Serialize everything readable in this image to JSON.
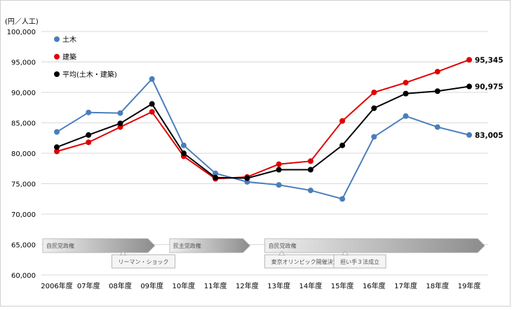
{
  "chart_data": {
    "type": "line",
    "unit_label": "(円／人工)",
    "categories": [
      "2006年度",
      "07年度",
      "08年度",
      "09年度",
      "10年度",
      "11年度",
      "12年度",
      "13年度",
      "14年度",
      "15年度",
      "16年度",
      "17年度",
      "18年度",
      "19年度"
    ],
    "ylim": [
      60000,
      100000
    ],
    "yticks": [
      "60,000",
      "65,000",
      "70,000",
      "75,000",
      "80,000",
      "85,000",
      "90,000",
      "95,000",
      "100,000"
    ],
    "grid": true,
    "legend_position": "top-left",
    "series": [
      {
        "name": "土木",
        "color": "#4a7ebb",
        "values": [
          83500,
          86700,
          86600,
          92200,
          81300,
          76700,
          75300,
          74800,
          73900,
          72500,
          82700,
          86100,
          84300,
          83005
        ],
        "end_label": "83,005"
      },
      {
        "name": "建築",
        "color": "#e00000",
        "values": [
          80300,
          81800,
          84300,
          86800,
          79500,
          75800,
          76100,
          78200,
          78700,
          85300,
          90000,
          91600,
          93400,
          95345
        ],
        "end_label": "95,345"
      },
      {
        "name": "平均(土木・建築)",
        "color": "#000000",
        "values": [
          81000,
          83000,
          84900,
          88100,
          80000,
          76000,
          75900,
          77300,
          77300,
          81300,
          87400,
          89800,
          90200,
          90975
        ],
        "end_label": "90,975"
      }
    ],
    "annotations": {
      "eras": [
        {
          "label": "自民党政権",
          "from": 0,
          "to": 3
        },
        {
          "label": "民主党政権",
          "from": 4,
          "to": 6
        },
        {
          "label": "自民党政権",
          "from": 7,
          "to": 13
        }
      ],
      "events": [
        {
          "label": "リーマン・ショック",
          "at": 2
        },
        {
          "label": "東京オリンピック開催決定",
          "at": 7
        },
        {
          "label": "担い手３法成立",
          "at": 9
        }
      ]
    }
  }
}
